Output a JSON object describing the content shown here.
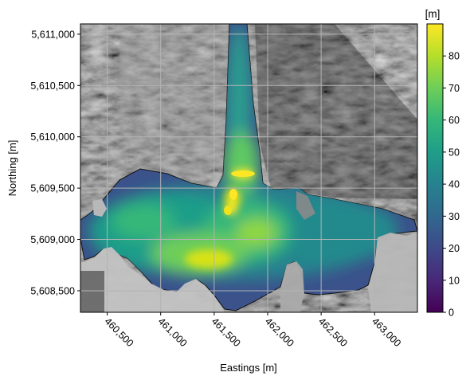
{
  "map": {
    "x_axis": {
      "label": "Eastings [m]",
      "range": [
        460250,
        463400
      ],
      "ticks": [
        {
          "value": 460500,
          "label": "460,500"
        },
        {
          "value": 461000,
          "label": "461,000"
        },
        {
          "value": 461500,
          "label": "461,500"
        },
        {
          "value": 462000,
          "label": "462,000"
        },
        {
          "value": 462500,
          "label": "462,500"
        },
        {
          "value": 463000,
          "label": "463,000"
        }
      ]
    },
    "y_axis": {
      "label": "Northing [m]",
      "range": [
        5608290,
        5611100
      ],
      "ticks": [
        {
          "value": 5611000,
          "label": "5,611,000"
        },
        {
          "value": 5610500,
          "label": "5,610,500"
        },
        {
          "value": 5610000,
          "label": "5,610,000"
        },
        {
          "value": 5609500,
          "label": "5,609,500"
        },
        {
          "value": 5609000,
          "label": "5,609,000"
        },
        {
          "value": 5608500,
          "label": "5,608,500"
        }
      ]
    },
    "grid": true,
    "basemap": "grayscale hillshade",
    "overlay_colormap": "viridis",
    "colorbar": {
      "unit_label": "[m]",
      "range": [
        0,
        90
      ],
      "ticks": [
        {
          "value": 0,
          "label": "0"
        },
        {
          "value": 10,
          "label": "10"
        },
        {
          "value": 20,
          "label": "20"
        },
        {
          "value": 30,
          "label": "30"
        },
        {
          "value": 40,
          "label": "40"
        },
        {
          "value": 50,
          "label": "50"
        },
        {
          "value": 60,
          "label": "60"
        },
        {
          "value": 70,
          "label": "70"
        },
        {
          "value": 80,
          "label": "80"
        }
      ]
    },
    "colors": {
      "viridis_stops": [
        "#440154",
        "#482878",
        "#3e4989",
        "#31688e",
        "#26828e",
        "#1f9e89",
        "#35b779",
        "#6ece58",
        "#b5de2b",
        "#fde725"
      ],
      "grid_line": "#b4b4b4"
    }
  }
}
